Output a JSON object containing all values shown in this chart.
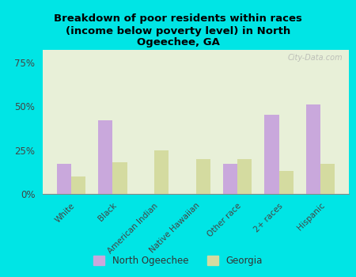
{
  "title": "Breakdown of poor residents within races\n(income below poverty level) in North\nOgeechee, GA",
  "categories": [
    "White",
    "Black",
    "American Indian",
    "Native Hawaiian",
    "Other race",
    "2+ races",
    "Hispanic"
  ],
  "north_ogeechee": [
    17,
    42,
    0,
    0,
    17,
    45,
    51
  ],
  "georgia": [
    10,
    18,
    25,
    20,
    20,
    13,
    17
  ],
  "color_no": "#c9a8dc",
  "color_ga": "#d4dba0",
  "background_outer": "#00e5e5",
  "background_plot": "#e8f0d8",
  "yticks": [
    0,
    25,
    50,
    75
  ],
  "ylim": [
    0,
    82
  ],
  "legend_no": "North Ogeechee",
  "legend_ga": "Georgia",
  "watermark": "City-Data.com"
}
